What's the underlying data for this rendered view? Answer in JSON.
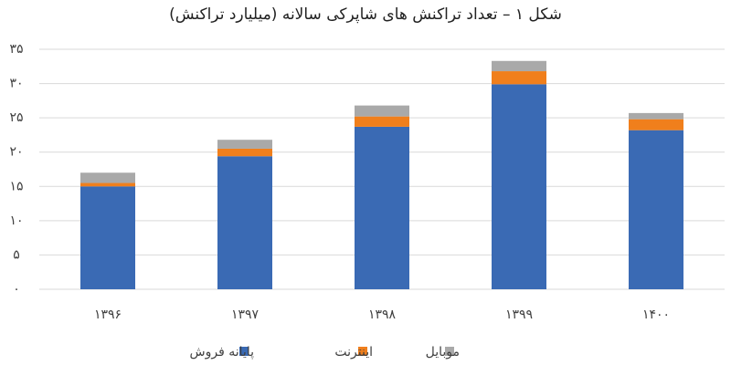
{
  "chart_data": {
    "type": "stacked_bar",
    "title": "شکل ۱ – تعداد تراکنش های شاپرکی سالانه (میلیارد تراکنش)",
    "categories": [
      "۱۳۹۶",
      "۱۳۹۷",
      "۱۳۹۸",
      "۱۳۹۹",
      "۱۴۰۰"
    ],
    "series": [
      {
        "name": "پایانه فروش",
        "color": "#3a6ab4",
        "values": [
          15.0,
          19.4,
          23.7,
          29.9,
          23.2
        ]
      },
      {
        "name": "اینترنت",
        "color": "#f07f1c",
        "values": [
          0.5,
          1.1,
          1.5,
          1.9,
          1.6
        ]
      },
      {
        "name": "موبایل",
        "color": "#a9a9a9",
        "values": [
          1.5,
          1.3,
          1.6,
          1.5,
          0.9
        ]
      }
    ],
    "ylim": [
      0,
      35
    ],
    "yticks": [
      {
        "value": 0,
        "label": "۰"
      },
      {
        "value": 5,
        "label": "۵"
      },
      {
        "value": 10,
        "label": "۱۰"
      },
      {
        "value": 15,
        "label": "۱۵"
      },
      {
        "value": 20,
        "label": "۲۰"
      },
      {
        "value": 25,
        "label": "۲۵"
      },
      {
        "value": 30,
        "label": "۳۰"
      },
      {
        "value": 35,
        "label": "۳۵"
      }
    ],
    "grid": true,
    "legend": "bottom"
  }
}
